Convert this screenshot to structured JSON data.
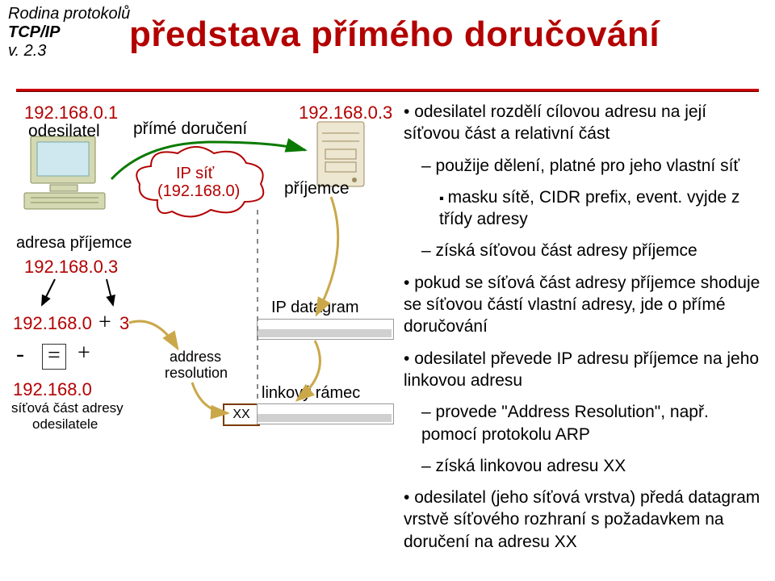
{
  "corner": {
    "l1": "Rodina protokolů",
    "l2": "TCP/IP",
    "l3": "v. 2.3",
    "fontsize": 20,
    "color": "#000000"
  },
  "title": {
    "text": "představa přímého doručování",
    "fontsize": 44,
    "color": "#b30000"
  },
  "hr": {
    "color": "#c00000"
  },
  "diagram": {
    "ip_sender": "192.168.0.1",
    "sender_label": "odesilatel",
    "direct_delivery": "přímé doručení",
    "ip_net_lbl1": "IP síť",
    "ip_net_lbl2": "(192.168.0)",
    "ip_receiver": "192.168.0.3",
    "receiver_label": "příjemce",
    "addr_receiver_lbl": "adresa příjemce",
    "addr_receiver_val": "192.168.0.3",
    "split_net": "192.168.0",
    "split_host": "3",
    "plus": "+",
    "minus": "-",
    "eq": "=",
    "plus2": "+",
    "own_net": "192.168.0",
    "own_net_sub1": "síťová část adresy",
    "own_net_sub2": "odesilatele",
    "address_res1": "address",
    "address_res2": "resolution",
    "xx": "XX",
    "ip_datagram": "IP datagram",
    "link_frame": "linkový rámec",
    "colors": {
      "red": "#b30000",
      "brown": "#7a3a00",
      "green": "#0a7a00",
      "monitor_screen": "#cfe7ef",
      "monitor_body": "#d4d9b2",
      "monitor_dark": "#8a8f5a",
      "server_body": "#ede6d0",
      "server_line": "#9a8a60",
      "cloud_stroke": "#b30000",
      "arrow_green": "#0a7a00",
      "arrow_yellow": "#caa84a"
    },
    "fontsizes": {
      "ip": 22,
      "label": 22,
      "small": 16,
      "serif": 26
    }
  },
  "bullets": {
    "fontsize": 21,
    "items": [
      {
        "level": "dot",
        "text": "odesilatel rozdělí cílovou adresu na její síťovou část a relativní část"
      },
      {
        "level": "dash",
        "text": "použije dělení, platné pro jeho vlastní síť"
      },
      {
        "level": "sq",
        "text": "masku sítě, CIDR prefix, event. vyjde z třídy adresy"
      },
      {
        "level": "dash",
        "text": "získá síťovou část adresy příjemce"
      },
      {
        "level": "dot",
        "text": "pokud se síťová část adresy příjemce shoduje se síťovou částí vlastní adresy, jde o přímé doručování"
      },
      {
        "level": "dot",
        "text": "odesilatel převede IP adresu příjemce na jeho linkovou adresu"
      },
      {
        "level": "dash",
        "text": "provede \"Address Resolution\", např. pomocí protokolu ARP"
      },
      {
        "level": "dash",
        "text": "získá linkovou adresu XX"
      },
      {
        "level": "dot",
        "text": "odesilatel (jeho síťová vrstva) předá datagram vrstvě síťového rozhraní s požadavkem na doručení na adresu XX"
      }
    ]
  }
}
